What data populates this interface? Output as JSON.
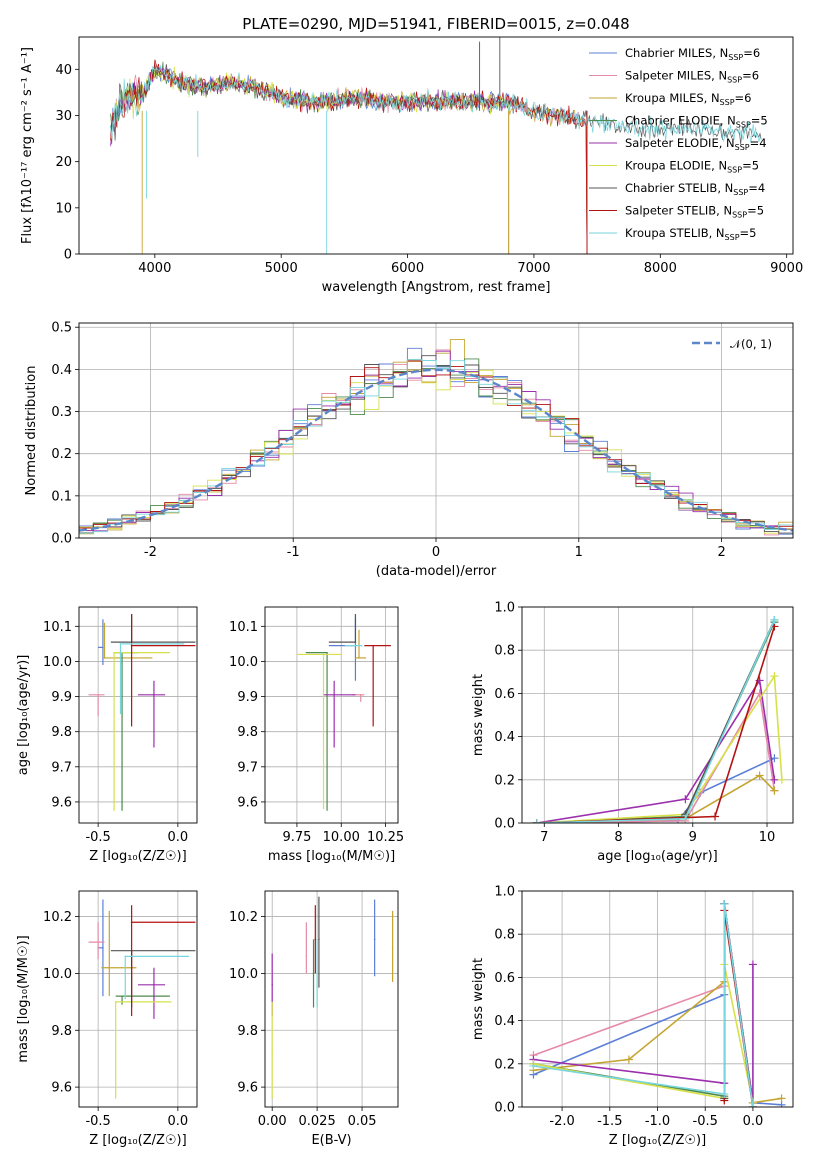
{
  "figure": {
    "title": "PLATE=0290, MJD=51941, FIBERID=0015, z=0.048"
  },
  "colors": {
    "Chabrier MILES": "#5b7fd6",
    "Salpeter MILES": "#e58aa7",
    "Kroupa MILES": "#c5a532",
    "Chabrier ELODIE": "#4d8a4d",
    "Salpeter ELODIE": "#9b2fae",
    "Kroupa ELODIE": "#d6e04a",
    "Chabrier STELIB": "#555555",
    "Salpeter STELIB": "#b31212",
    "Kroupa STELIB": "#77d6de"
  },
  "chart_data": [
    {
      "id": "spectrum",
      "type": "line",
      "xlabel": "wavelength [Angstrom, rest frame]",
      "ylabel": "Flux [fλ10⁻¹⁷ erg cm⁻² s⁻¹ A⁻¹]",
      "xlim": [
        3400,
        9050
      ],
      "ylim": [
        0,
        47
      ],
      "xticks": [
        4000,
        5000,
        6000,
        7000,
        8000,
        9000
      ],
      "yticks": [
        0,
        10,
        20,
        30,
        40
      ],
      "legend_position": "top-right",
      "legend": [
        {
          "label": "Chabrier MILES, N",
          "sub": "SSP",
          "suffix": "=6"
        },
        {
          "label": "Salpeter MILES, N",
          "sub": "SSP",
          "suffix": "=6"
        },
        {
          "label": "Kroupa MILES, N",
          "sub": "SSP",
          "suffix": "=6"
        },
        {
          "label": "Chabrier ELODIE, N",
          "sub": "SSP",
          "suffix": "=5"
        },
        {
          "label": "Salpeter ELODIE, N",
          "sub": "SSP",
          "suffix": "=4"
        },
        {
          "label": "Kroupa ELODIE, N",
          "sub": "SSP",
          "suffix": "=5"
        },
        {
          "label": "Chabrier STELIB, N",
          "sub": "SSP",
          "suffix": "=4"
        },
        {
          "label": "Salpeter STELIB, N",
          "sub": "SSP",
          "suffix": "=5"
        },
        {
          "label": "Kroupa STELIB, N",
          "sub": "SSP",
          "suffix": "=5"
        }
      ],
      "data_approx": {
        "x": [
          3650,
          3700,
          3800,
          3900,
          4000,
          4100,
          4200,
          4400,
          4600,
          4800,
          5000,
          5200,
          5400,
          5600,
          5800,
          6000,
          6200,
          6400,
          6600,
          6800,
          7000,
          7200,
          7400,
          7600,
          7800,
          8000,
          8200,
          8400,
          8600,
          8800
        ],
        "y": [
          27,
          31,
          35,
          34,
          40,
          39,
          37,
          36,
          37,
          36,
          34,
          33,
          33,
          34,
          33,
          33,
          33,
          33,
          33,
          33,
          31,
          30,
          29,
          28,
          27.5,
          27,
          27,
          26.5,
          26,
          26
        ]
      },
      "notes": [
        "spikes to 0 near 3900, 5360, 6800 and 7420; MILES, ELODIE and Salpeter STELIB stop near 7420; ELODIE near 6800"
      ]
    },
    {
      "id": "residuals",
      "type": "bar",
      "xlabel": "(data-model)/error",
      "ylabel": "Normed distribution",
      "xlim": [
        -2.5,
        2.5
      ],
      "ylim": [
        0,
        0.51
      ],
      "xticks": [
        -2,
        -1,
        0,
        1,
        2
      ],
      "yticks": [
        0.0,
        0.1,
        0.2,
        0.3,
        0.4,
        0.5
      ],
      "legend_position": "top-right",
      "reference_label": "𝒩(0, 1)",
      "bin_width": 0.1
    },
    {
      "id": "age-vs-Z",
      "type": "scatter",
      "xlabel": "Z [log₁₀(Z/Z☉)]",
      "ylabel": "age  [log₁₀(age/yr)]",
      "xlim": [
        -0.62,
        0.12
      ],
      "ylim": [
        9.54,
        10.155
      ],
      "xticks": [
        -0.5,
        0.0
      ],
      "yticks": [
        9.6,
        9.7,
        9.8,
        9.9,
        10.0,
        10.1
      ],
      "points": [
        {
          "m": "Chabrier MILES",
          "x": -0.47,
          "xlo": 0.03,
          "xhi": 0.0,
          "y": 10.04,
          "ylo": 0.05,
          "yhi": 0.08
        },
        {
          "m": "Salpeter MILES",
          "x": -0.5,
          "xlo": 0.06,
          "xhi": 0.04,
          "y": 9.905,
          "ylo": 0.06,
          "yhi": 0.0
        },
        {
          "m": "Kroupa MILES",
          "x": -0.46,
          "xlo": 0.0,
          "xhi": 0.3,
          "y": 10.01,
          "ylo": 0.0,
          "yhi": 0.1
        },
        {
          "m": "Chabrier ELODIE",
          "x": -0.35,
          "xlo": 0.05,
          "xhi": 0.1,
          "y": 10.025,
          "ylo": 0.45,
          "yhi": 0.0
        },
        {
          "m": "Salpeter ELODIE",
          "x": -0.15,
          "xlo": 0.1,
          "xhi": 0.07,
          "y": 9.905,
          "ylo": 0.15,
          "yhi": 0.04
        },
        {
          "m": "Kroupa ELODIE",
          "x": -0.4,
          "xlo": 0.0,
          "xhi": 0.35,
          "y": 10.025,
          "ylo": 0.45,
          "yhi": 0.0
        },
        {
          "m": "Chabrier STELIB",
          "x": -0.29,
          "xlo": 0.13,
          "xhi": 0.4,
          "y": 10.055,
          "ylo": 0.0,
          "yhi": 0.08
        },
        {
          "m": "Salpeter STELIB",
          "x": -0.29,
          "xlo": 0.0,
          "xhi": 0.4,
          "y": 10.045,
          "ylo": 0.23,
          "yhi": 0.09
        },
        {
          "m": "Kroupa STELIB",
          "x": -0.36,
          "xlo": 0.0,
          "xhi": 0.4,
          "y": 10.05,
          "ylo": 0.2,
          "yhi": 0.0
        }
      ]
    },
    {
      "id": "age-vs-mass",
      "type": "scatter",
      "xlabel": "mass [log₁₀(M/M☉)]",
      "ylabel": "",
      "xlim": [
        9.57,
        10.32
      ],
      "ylim": [
        9.54,
        10.155
      ],
      "xticks": [
        9.75,
        10.0,
        10.25
      ],
      "xtick_labels": [
        "9.75",
        "10.00",
        "10.25"
      ],
      "yticks": [
        9.6,
        9.7,
        9.8,
        9.9,
        10.0,
        10.1
      ],
      "points": [
        {
          "m": "Chabrier MILES",
          "x": 10.08,
          "xlo": 0.15,
          "xhi": 0.0,
          "y": 10.045,
          "ylo": 0.1,
          "yhi": 0.08
        },
        {
          "m": "Salpeter MILES",
          "x": 10.11,
          "xlo": 0.05,
          "xhi": 0.02,
          "y": 9.905,
          "ylo": 0.02,
          "yhi": 0.0
        },
        {
          "m": "Kroupa MILES",
          "x": 10.1,
          "xlo": 0.02,
          "xhi": 0.04,
          "y": 10.01,
          "ylo": 0.0,
          "yhi": 0.08
        },
        {
          "m": "Chabrier ELODIE",
          "x": 9.92,
          "xlo": 0.12,
          "xhi": 0.0,
          "y": 10.025,
          "ylo": 0.45,
          "yhi": 0.0
        },
        {
          "m": "Salpeter ELODIE",
          "x": 9.96,
          "xlo": 0.06,
          "xhi": 0.12,
          "y": 9.905,
          "ylo": 0.15,
          "yhi": 0.04
        },
        {
          "m": "Kroupa ELODIE",
          "x": 9.9,
          "xlo": 0.15,
          "xhi": 0.1,
          "y": 10.02,
          "ylo": 0.44,
          "yhi": 0.0
        },
        {
          "m": "Chabrier STELIB",
          "x": 10.08,
          "xlo": 0.15,
          "xhi": 0.0,
          "y": 10.055,
          "ylo": 0.0,
          "yhi": 0.08
        },
        {
          "m": "Salpeter STELIB",
          "x": 10.18,
          "xlo": 0.05,
          "xhi": 0.1,
          "y": 10.045,
          "ylo": 0.23,
          "yhi": 0.0
        },
        {
          "m": "Kroupa STELIB",
          "x": 10.07,
          "xlo": 0.05,
          "xhi": 0.05,
          "y": 10.045,
          "ylo": 0.0,
          "yhi": 0.0
        }
      ]
    },
    {
      "id": "massweight-vs-age",
      "type": "line",
      "xlabel": "age  [log₁₀(age/yr)]",
      "ylabel": "mass weight",
      "xlim": [
        6.7,
        10.35
      ],
      "ylim": [
        0,
        1.0
      ],
      "xticks": [
        7,
        8,
        9,
        10
      ],
      "yticks": [
        0.0,
        0.2,
        0.4,
        0.6,
        0.8,
        1.0
      ],
      "series": [
        {
          "m": "Chabrier MILES",
          "x": [
            6.9,
            8.8,
            9.1,
            10.1
          ],
          "y": [
            0.0,
            0.01,
            0.14,
            0.3
          ]
        },
        {
          "m": "Salpeter MILES",
          "x": [
            6.9,
            8.9,
            9.9,
            10.1
          ],
          "y": [
            0.0,
            0.01,
            0.6,
            0.15
          ]
        },
        {
          "m": "Kroupa MILES",
          "x": [
            6.9,
            8.9,
            9.9,
            10.1
          ],
          "y": [
            0.0,
            0.02,
            0.22,
            0.15
          ]
        },
        {
          "m": "Chabrier ELODIE",
          "x": [
            6.9,
            8.9,
            10.1
          ],
          "y": [
            0.0,
            0.03,
            0.93
          ]
        },
        {
          "m": "Salpeter ELODIE",
          "x": [
            6.9,
            8.9,
            9.9,
            10.1
          ],
          "y": [
            0.0,
            0.11,
            0.66,
            0.2
          ]
        },
        {
          "m": "Kroupa ELODIE",
          "x": [
            6.9,
            8.9,
            10.1,
            10.2
          ],
          "y": [
            0.0,
            0.04,
            0.68,
            0.2
          ]
        },
        {
          "m": "Chabrier STELIB",
          "x": [
            8.9,
            10.1
          ],
          "y": [
            0.04,
            0.94
          ]
        },
        {
          "m": "Salpeter STELIB",
          "x": [
            6.9,
            9.3,
            10.1
          ],
          "y": [
            0.0,
            0.03,
            0.91
          ]
        },
        {
          "m": "Kroupa STELIB",
          "x": [
            6.9,
            8.9,
            10.1
          ],
          "y": [
            0.0,
            0.02,
            0.94
          ]
        }
      ]
    },
    {
      "id": "mass-vs-Z",
      "type": "scatter",
      "xlabel": "Z [log₁₀(Z/Z☉)]",
      "ylabel": "mass [log₁₀(M/M☉)]",
      "xlim": [
        -0.62,
        0.12
      ],
      "ylim": [
        9.53,
        10.29
      ],
      "xticks": [
        -0.5,
        0.0
      ],
      "yticks": [
        9.6,
        9.8,
        10.0,
        10.2
      ],
      "points": [
        {
          "m": "Chabrier MILES",
          "x": -0.47,
          "xlo": 0.03,
          "xhi": 0.0,
          "y": 10.09,
          "ylo": 0.17,
          "yhi": 0.17
        },
        {
          "m": "Salpeter MILES",
          "x": -0.5,
          "xlo": 0.06,
          "xhi": 0.04,
          "y": 10.11,
          "ylo": 0.06,
          "yhi": 0.07
        },
        {
          "m": "Kroupa MILES",
          "x": -0.43,
          "xlo": 0.05,
          "xhi": 0.17,
          "y": 10.02,
          "ylo": 0.1,
          "yhi": 0.2
        },
        {
          "m": "Chabrier ELODIE",
          "x": -0.35,
          "xlo": 0.04,
          "xhi": 0.3,
          "y": 9.92,
          "ylo": 0.03,
          "yhi": 0.0
        },
        {
          "m": "Salpeter ELODIE",
          "x": -0.15,
          "xlo": 0.1,
          "xhi": 0.07,
          "y": 9.96,
          "ylo": 0.12,
          "yhi": 0.06
        },
        {
          "m": "Kroupa ELODIE",
          "x": -0.39,
          "xlo": 0.0,
          "xhi": 0.35,
          "y": 9.9,
          "ylo": 0.34,
          "yhi": 0.0
        },
        {
          "m": "Chabrier STELIB",
          "x": -0.29,
          "xlo": 0.13,
          "xhi": 0.4,
          "y": 10.08,
          "ylo": 0.2,
          "yhi": 0.0
        },
        {
          "m": "Salpeter STELIB",
          "x": -0.29,
          "xlo": 0.0,
          "xhi": 0.4,
          "y": 10.18,
          "ylo": 0.33,
          "yhi": 0.06
        },
        {
          "m": "Kroupa STELIB",
          "x": -0.33,
          "xlo": 0.0,
          "xhi": 0.4,
          "y": 10.06,
          "ylo": 0.15,
          "yhi": 0.0
        }
      ]
    },
    {
      "id": "mass-vs-EBV",
      "type": "scatter",
      "xlabel": "E(B-V)",
      "ylabel": "",
      "xlim": [
        -0.004,
        0.07
      ],
      "ylim": [
        9.53,
        10.29
      ],
      "xticks": [
        0.0,
        0.025,
        0.05
      ],
      "xtick_labels": [
        "0.00",
        "0.025",
        "0.05"
      ],
      "yticks": [
        9.6,
        9.8,
        10.0,
        10.2
      ],
      "points": [
        {
          "m": "Chabrier MILES",
          "x": 0.057,
          "y": 10.12,
          "ylo": 0.13,
          "yhi": 0.14
        },
        {
          "m": "Salpeter MILES",
          "x": 0.019,
          "y": 10.06,
          "ylo": 0.06,
          "yhi": 0.12
        },
        {
          "m": "Kroupa MILES",
          "x": 0.067,
          "y": 10.09,
          "ylo": 0.12,
          "yhi": 0.13
        },
        {
          "m": "Chabrier ELODIE",
          "x": 0.023,
          "y": 10.0,
          "ylo": 0.12,
          "yhi": 0.12
        },
        {
          "m": "Salpeter ELODIE",
          "x": 0.0,
          "y": 9.96,
          "ylo": 0.11,
          "yhi": 0.11
        },
        {
          "m": "Kroupa ELODIE",
          "x": 0.0,
          "y": 9.73,
          "ylo": 0.17,
          "yhi": 0.17
        },
        {
          "m": "Chabrier STELIB",
          "x": 0.026,
          "y": 10.12,
          "ylo": 0.17,
          "yhi": 0.15
        },
        {
          "m": "Salpeter STELIB",
          "x": 0.024,
          "y": 10.12,
          "ylo": 0.12,
          "yhi": 0.12
        },
        {
          "m": "Kroupa STELIB",
          "x": 0.025,
          "y": 10.0,
          "ylo": 0.12,
          "yhi": 0.12
        }
      ]
    },
    {
      "id": "massweight-vs-Z",
      "type": "line",
      "xlabel": "Z [log₁₀(Z/Z☉)]",
      "ylabel": "mass weight",
      "xlim": [
        -2.42,
        0.42
      ],
      "ylim": [
        0,
        1.0
      ],
      "xticks": [
        -2.0,
        -1.5,
        -1.0,
        -0.5,
        0.0
      ],
      "yticks": [
        0.0,
        0.2,
        0.4,
        0.6,
        0.8,
        1.0
      ],
      "series": [
        {
          "m": "Chabrier MILES",
          "x": [
            -2.3,
            -0.3,
            -0.3,
            0.0,
            0.3
          ],
          "y": [
            0.15,
            0.52,
            0.94,
            0.02,
            0.01
          ]
        },
        {
          "m": "Salpeter MILES",
          "x": [
            -2.3,
            -0.3,
            -0.3,
            0.0
          ],
          "y": [
            0.24,
            0.56,
            0.94,
            0.02
          ]
        },
        {
          "m": "Kroupa MILES",
          "x": [
            -2.3,
            -1.3,
            -0.3,
            -0.3,
            0.0,
            0.3
          ],
          "y": [
            0.17,
            0.22,
            0.58,
            0.94,
            0.02,
            0.04
          ]
        },
        {
          "m": "Chabrier ELODIE",
          "x": [
            -2.3,
            -0.3,
            -0.3,
            0.0
          ],
          "y": [
            0.2,
            0.05,
            0.94,
            0.02
          ]
        },
        {
          "m": "Salpeter ELODIE",
          "x": [
            -2.3,
            -0.3,
            -0.3,
            0.0,
            0.0
          ],
          "y": [
            0.22,
            0.11,
            0.94,
            0.02,
            0.66
          ]
        },
        {
          "m": "Kroupa ELODIE",
          "x": [
            -2.3,
            -0.3,
            -0.3,
            0.0
          ],
          "y": [
            0.2,
            0.04,
            0.66,
            0.02
          ]
        },
        {
          "m": "Chabrier STELIB",
          "x": [
            -0.3,
            -0.3,
            0.0
          ],
          "y": [
            0.04,
            0.94,
            0.0
          ]
        },
        {
          "m": "Salpeter STELIB",
          "x": [
            -0.3,
            -0.3,
            0.0
          ],
          "y": [
            0.03,
            0.91,
            0.0
          ]
        },
        {
          "m": "Kroupa STELIB",
          "x": [
            -2.3,
            -0.3,
            -0.3,
            0.0
          ],
          "y": [
            0.19,
            0.06,
            0.94,
            0.0
          ]
        }
      ]
    }
  ]
}
